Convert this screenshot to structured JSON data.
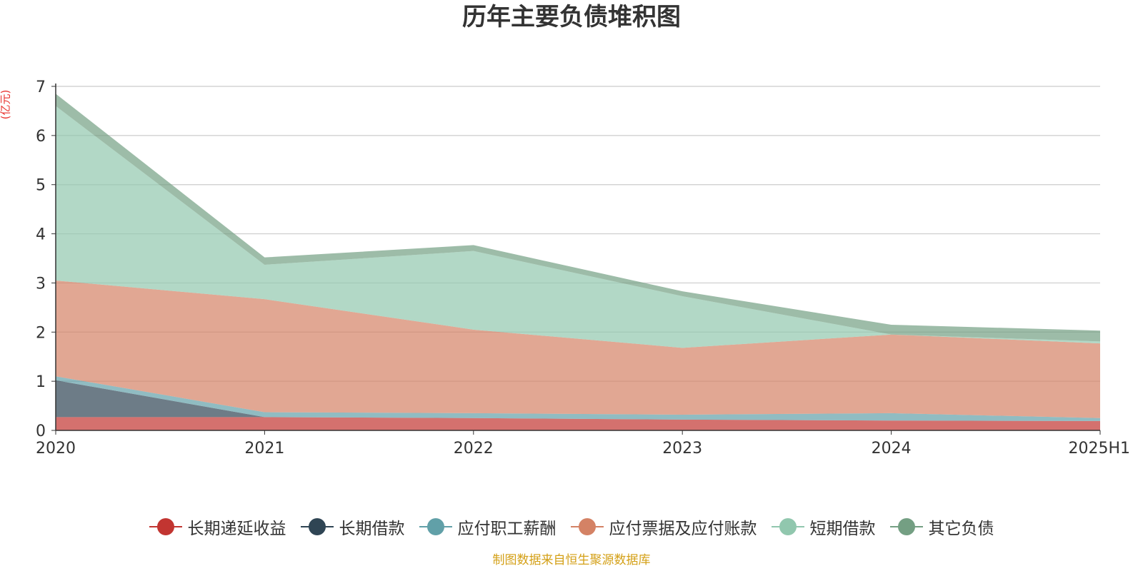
{
  "chart_data": {
    "type": "area",
    "stacked": true,
    "title": "历年主要负债堆积图",
    "unit_label": "(亿元)",
    "x": [
      "2020",
      "2021",
      "2022",
      "2023",
      "2024",
      "2025H1"
    ],
    "ylim": [
      0,
      7
    ],
    "y_ticks": [
      0,
      1,
      2,
      3,
      4,
      5,
      6,
      7
    ],
    "grid": true,
    "legend_position": "bottom",
    "series": [
      {
        "name": "长期递延收益",
        "color": "#c23531",
        "values": [
          0.27,
          0.27,
          0.25,
          0.22,
          0.2,
          0.19
        ]
      },
      {
        "name": "长期借款",
        "color": "#2f4554",
        "values": [
          0.75,
          0.0,
          0.0,
          0.0,
          0.0,
          0.0
        ]
      },
      {
        "name": "应付职工薪酬",
        "color": "#61a0a8",
        "values": [
          0.08,
          0.1,
          0.1,
          0.1,
          0.15,
          0.06
        ]
      },
      {
        "name": "应付票据及应付账款",
        "color": "#d48265",
        "values": [
          1.95,
          2.3,
          1.7,
          1.36,
          1.6,
          1.52
        ]
      },
      {
        "name": "短期借款",
        "color": "#91c7ae",
        "values": [
          3.55,
          0.7,
          1.6,
          1.05,
          0.0,
          0.04
        ]
      },
      {
        "name": "其它负债",
        "color": "#749f83",
        "values": [
          0.25,
          0.15,
          0.12,
          0.1,
          0.2,
          0.22
        ]
      }
    ]
  },
  "source_note": "制图数据来自恒生聚源数据库"
}
